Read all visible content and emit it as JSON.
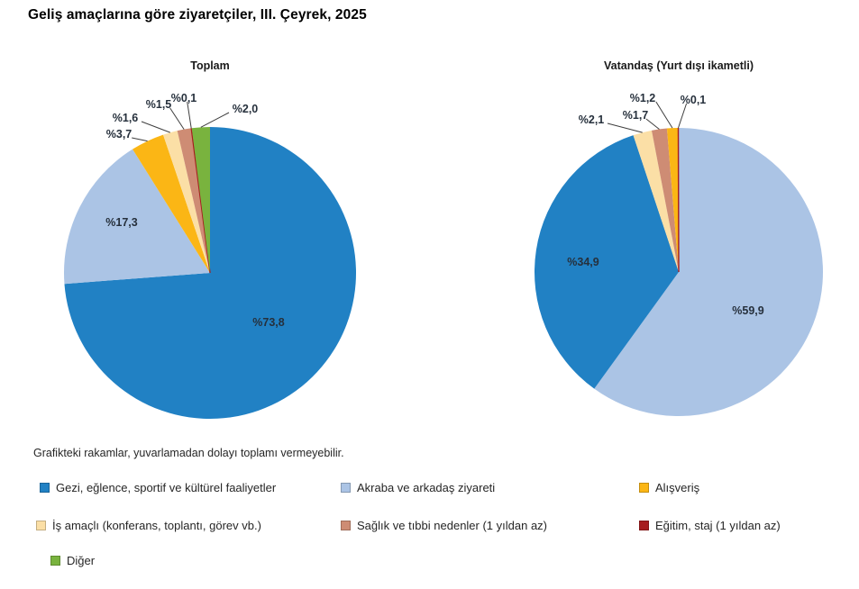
{
  "title": "Geliş amaçlarına göre ziyaretçiler, III. Çeyrek, 2025",
  "note": "Grafikteki rakamlar, yuvarlamadan dolayı toplamı vermeyebilir.",
  "legend": [
    {
      "label": "Gezi, eğlence, sportif ve kültürel faaliyetler",
      "color": "#2181C4"
    },
    {
      "label": "Akraba ve arkadaş ziyareti",
      "color": "#ABC4E5"
    },
    {
      "label": "Alışveriş",
      "color": "#FBB615"
    },
    {
      "label": "İş amaçlı (konferans, toplantı, görev vb.)",
      "color": "#FBDFA6"
    },
    {
      "label": "Sağlık ve tıbbi nedenler (1 yıldan az)",
      "color": "#CE8C74"
    },
    {
      "label": "Eğitim, staj (1 yıldan az)",
      "color": "#A61C1E"
    },
    {
      "label": "Diğer",
      "color": "#79B33E"
    }
  ],
  "chart_data": [
    {
      "type": "pie",
      "title": "Toplam",
      "start_angle": "top",
      "direction": "clockwise",
      "legend_position": "bottom",
      "slices": [
        {
          "category": "Gezi, eğlence, sportif ve kültürel faaliyetler",
          "value": 73.8,
          "label": "%73,8",
          "legend_index": 0
        },
        {
          "category": "Akraba ve arkadaş ziyareti",
          "value": 17.3,
          "label": "%17,3",
          "legend_index": 1
        },
        {
          "category": "Alışveriş",
          "value": 3.7,
          "label": "%3,7",
          "legend_index": 2
        },
        {
          "category": "İş amaçlı (konferans, toplantı, görev vb.)",
          "value": 1.6,
          "label": "%1,6",
          "legend_index": 3
        },
        {
          "category": "Sağlık ve tıbbi nedenler (1 yıldan az)",
          "value": 1.5,
          "label": "%1,5",
          "legend_index": 4
        },
        {
          "category": "Eğitim, staj (1 yıldan az)",
          "value": 0.1,
          "label": "%0,1",
          "legend_index": 5
        },
        {
          "category": "Diğer",
          "value": 2.0,
          "label": "%2,0",
          "legend_index": 6
        }
      ]
    },
    {
      "type": "pie",
      "title": "Vatandaş (Yurt dışı ikametli)",
      "start_angle": "top",
      "direction": "clockwise",
      "legend_position": "bottom",
      "slices": [
        {
          "category": "Akraba ve arkadaş ziyareti",
          "value": 59.9,
          "label": "%59,9",
          "legend_index": 1
        },
        {
          "category": "Gezi, eğlence, sportif ve kültürel faaliyetler",
          "value": 34.9,
          "label": "%34,9",
          "legend_index": 0
        },
        {
          "category": "İş amaçlı (konferans, toplantı, görev vb.)",
          "value": 2.1,
          "label": "%2,1",
          "legend_index": 3
        },
        {
          "category": "Sağlık ve tıbbi nedenler (1 yıldan az)",
          "value": 1.7,
          "label": "%1,7",
          "legend_index": 4
        },
        {
          "category": "Alışveriş",
          "value": 1.2,
          "label": "%1,2",
          "legend_index": 2
        },
        {
          "category": "Eğitim, staj (1 yıldan az)",
          "value": 0.1,
          "label": "%0,1",
          "legend_index": 5
        }
      ]
    }
  ]
}
